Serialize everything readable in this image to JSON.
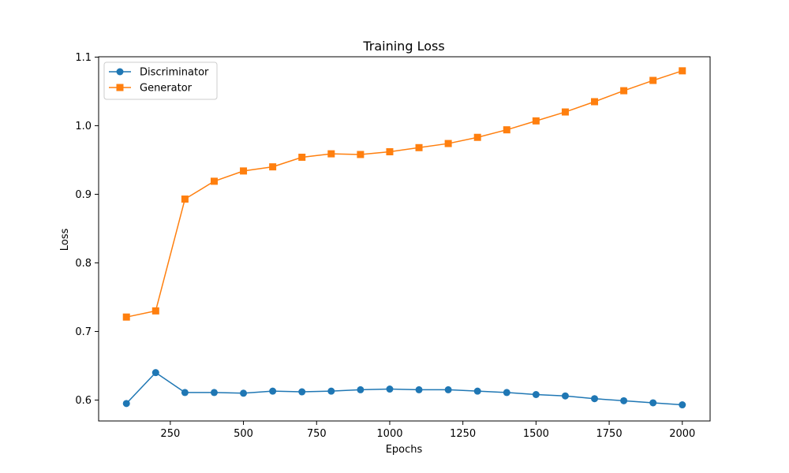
{
  "chart_data": {
    "type": "line",
    "title": "Training Loss",
    "xlabel": "Epochs",
    "ylabel": "Loss",
    "xlim": [
      5,
      2095
    ],
    "ylim": [
      0.5695,
      1.1005
    ],
    "xticks": [
      250,
      500,
      750,
      1000,
      1250,
      1500,
      1750,
      2000
    ],
    "yticks": [
      0.6,
      0.7,
      0.8,
      0.9,
      1.0,
      1.1
    ],
    "ytick_labels": [
      "0.6",
      "0.7",
      "0.8",
      "0.9",
      "1.0",
      "1.1"
    ],
    "grid": false,
    "legend_position": "top-left",
    "x": [
      100,
      200,
      300,
      400,
      500,
      600,
      700,
      800,
      900,
      1000,
      1100,
      1200,
      1300,
      1400,
      1500,
      1600,
      1700,
      1800,
      1900,
      2000
    ],
    "series": [
      {
        "name": "Discriminator",
        "color": "#1f77b4",
        "marker": "circle",
        "values": [
          0.595,
          0.64,
          0.611,
          0.611,
          0.61,
          0.613,
          0.612,
          0.613,
          0.615,
          0.616,
          0.615,
          0.615,
          0.613,
          0.611,
          0.608,
          0.606,
          0.602,
          0.599,
          0.596,
          0.593
        ]
      },
      {
        "name": "Generator",
        "color": "#ff7f0e",
        "marker": "square",
        "values": [
          0.721,
          0.73,
          0.893,
          0.919,
          0.934,
          0.94,
          0.954,
          0.959,
          0.958,
          0.962,
          0.968,
          0.974,
          0.983,
          0.994,
          1.007,
          1.02,
          1.035,
          1.051,
          1.066,
          1.08
        ]
      }
    ]
  }
}
